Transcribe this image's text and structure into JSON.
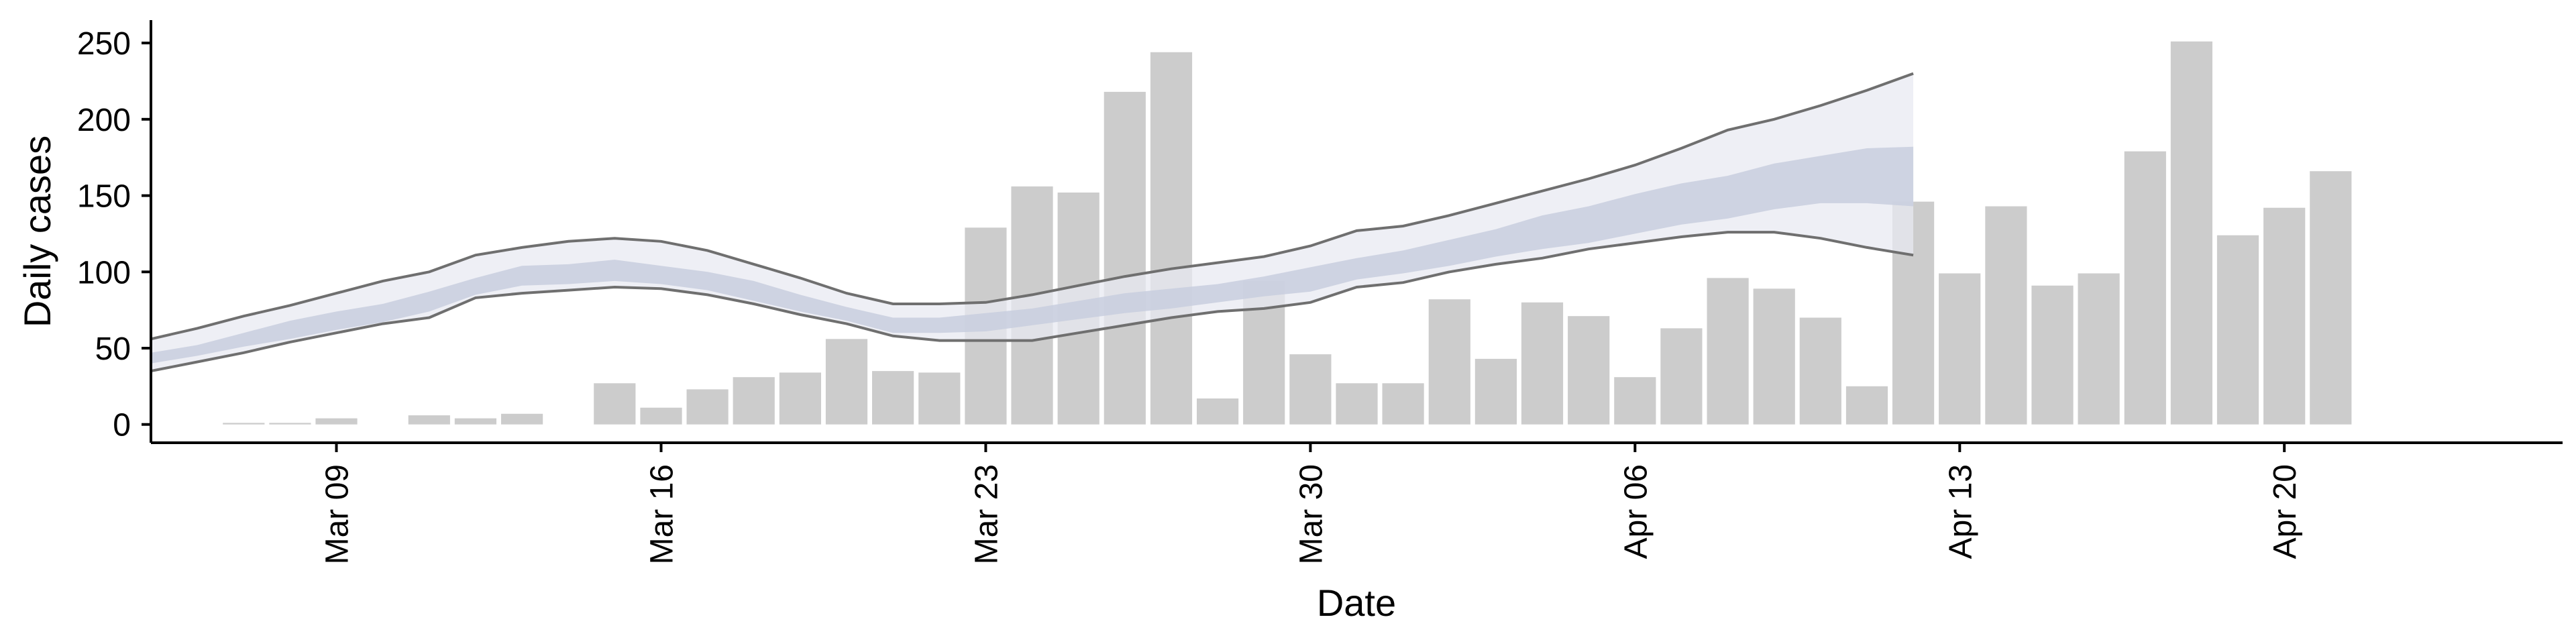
{
  "chart_data": {
    "type": "bar",
    "xlabel": "Date",
    "ylabel": "Daily cases",
    "ylim": [
      -12,
      265
    ],
    "yticks": [
      0,
      50,
      100,
      150,
      200,
      250
    ],
    "x_axis_type": "date",
    "xlim": [
      "2020-03-05",
      "2020-04-26"
    ],
    "xticks": [
      {
        "date": "2020-03-09",
        "label": "Mar 09"
      },
      {
        "date": "2020-03-16",
        "label": "Mar 16"
      },
      {
        "date": "2020-03-23",
        "label": "Mar 23"
      },
      {
        "date": "2020-03-30",
        "label": "Mar 30"
      },
      {
        "date": "2020-04-06",
        "label": "Apr 06"
      },
      {
        "date": "2020-04-13",
        "label": "Apr 13"
      },
      {
        "date": "2020-04-20",
        "label": "Apr 20"
      }
    ],
    "grid": false,
    "colors": {
      "bar": "#cccccc",
      "band_outer": "#e8eaf2",
      "band_inner": "#c8cede",
      "band_lines": "#6f6f6f"
    },
    "bars": {
      "dates": [
        "2020-03-07",
        "2020-03-08",
        "2020-03-09",
        "2020-03-10",
        "2020-03-11",
        "2020-03-12",
        "2020-03-13",
        "2020-03-14",
        "2020-03-15",
        "2020-03-16",
        "2020-03-17",
        "2020-03-18",
        "2020-03-19",
        "2020-03-20",
        "2020-03-21",
        "2020-03-22",
        "2020-03-23",
        "2020-03-24",
        "2020-03-25",
        "2020-03-26",
        "2020-03-27",
        "2020-03-28",
        "2020-03-29",
        "2020-03-30",
        "2020-03-31",
        "2020-04-01",
        "2020-04-02",
        "2020-04-03",
        "2020-04-04",
        "2020-04-05",
        "2020-04-06",
        "2020-04-07",
        "2020-04-08",
        "2020-04-09",
        "2020-04-10",
        "2020-04-11",
        "2020-04-12",
        "2020-04-13",
        "2020-04-14",
        "2020-04-15",
        "2020-04-16",
        "2020-04-17",
        "2020-04-18",
        "2020-04-19",
        "2020-04-20",
        "2020-04-21",
        "2020-04-22"
      ],
      "values": [
        1,
        1,
        4,
        0,
        6,
        4,
        7,
        0,
        27,
        11,
        23,
        31,
        34,
        56,
        35,
        34,
        129,
        156,
        152,
        218,
        244,
        17,
        94,
        46,
        27,
        27,
        82,
        43,
        80,
        71,
        31,
        63,
        96,
        89,
        70,
        25,
        146,
        99,
        143,
        91,
        99,
        179,
        251,
        124,
        142,
        166,
        0
      ]
    },
    "series": [
      {
        "dates": [
          "2020-03-05",
          "2020-03-06",
          "2020-03-07",
          "2020-03-08",
          "2020-03-09",
          "2020-03-10",
          "2020-03-11",
          "2020-03-12",
          "2020-03-13",
          "2020-03-14",
          "2020-03-15",
          "2020-03-16",
          "2020-03-17",
          "2020-03-18",
          "2020-03-19",
          "2020-03-20",
          "2020-03-21",
          "2020-03-22",
          "2020-03-23",
          "2020-03-24",
          "2020-03-25",
          "2020-03-26",
          "2020-03-27",
          "2020-03-28",
          "2020-03-29",
          "2020-03-30",
          "2020-03-31",
          "2020-04-01",
          "2020-04-02",
          "2020-04-03",
          "2020-04-04",
          "2020-04-05",
          "2020-04-06",
          "2020-04-07",
          "2020-04-08",
          "2020-04-09",
          "2020-04-10",
          "2020-04-11",
          "2020-04-12",
          "2020-04-13"
        ],
        "upper_outer": [
          56,
          63,
          71,
          78,
          86,
          94,
          100,
          111,
          116,
          120,
          122,
          120,
          114,
          105,
          96,
          86,
          79,
          79,
          80,
          85,
          91,
          97,
          102,
          106,
          110,
          117,
          127,
          130,
          137,
          145,
          153,
          161,
          170,
          181,
          193,
          200,
          209,
          219,
          230,
          0
        ],
        "upper_inner": [
          47,
          52,
          60,
          68,
          74,
          79,
          87,
          96,
          104,
          105,
          108,
          104,
          100,
          94,
          85,
          77,
          70,
          70,
          73,
          76,
          81,
          86,
          89,
          92,
          97,
          103,
          109,
          114,
          121,
          128,
          137,
          143,
          151,
          158,
          163,
          171,
          176,
          181,
          182,
          0
        ],
        "lower_inner": [
          40,
          45,
          51,
          56,
          62,
          67,
          74,
          85,
          91,
          92,
          94,
          92,
          88,
          81,
          74,
          68,
          60,
          60,
          61,
          65,
          69,
          73,
          76,
          80,
          84,
          87,
          95,
          99,
          104,
          110,
          115,
          119,
          125,
          131,
          135,
          141,
          145,
          145,
          143,
          0
        ],
        "lower_outer": [
          35,
          41,
          47,
          54,
          60,
          66,
          70,
          83,
          86,
          88,
          90,
          89,
          85,
          79,
          72,
          66,
          58,
          55,
          55,
          55,
          60,
          65,
          70,
          74,
          76,
          80,
          90,
          93,
          100,
          105,
          109,
          115,
          119,
          123,
          126,
          126,
          122,
          116,
          111,
          0
        ]
      }
    ]
  }
}
